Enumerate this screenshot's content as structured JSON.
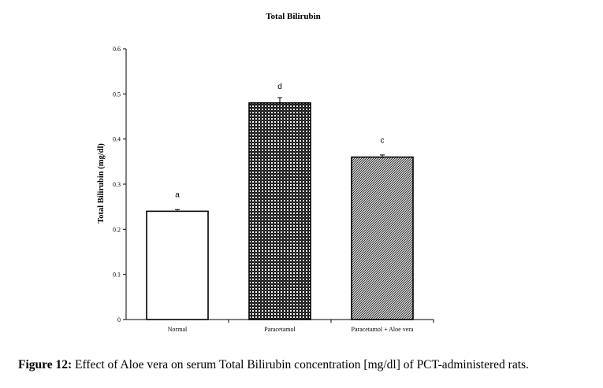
{
  "chart_data": {
    "type": "bar",
    "title": "Total Bilirubin",
    "xlabel": "",
    "ylabel": "Total Bilirubin (mg/dl)",
    "categories": [
      "Normal",
      "Paracetamol",
      "Paracetamol + Aloe vera"
    ],
    "values": [
      0.24,
      0.48,
      0.36
    ],
    "errors": [
      0.002,
      0.01,
      0.003
    ],
    "annotations": [
      "a",
      "d",
      "c"
    ],
    "fills": [
      "plain-white",
      "dense-dark-checker",
      "fine-diagonal-hatch"
    ],
    "ylim": [
      0,
      0.6
    ],
    "yticks": [
      "0",
      "0.1",
      "0.2",
      "0.3",
      "0.4",
      "0.5",
      "0.6"
    ],
    "grid": false,
    "legend": "none"
  },
  "caption": {
    "label": "Figure 12:",
    "text": " Effect of Aloe vera on serum Total Bilirubin concentration [mg/dl] of PCT-administered rats."
  }
}
